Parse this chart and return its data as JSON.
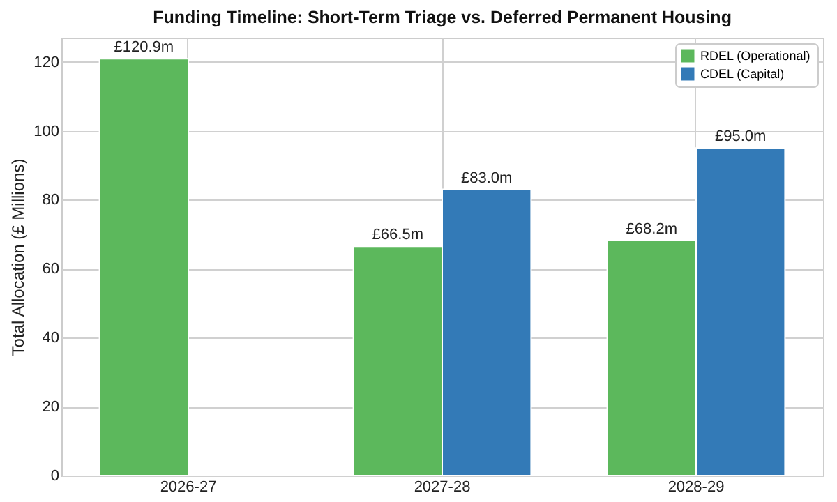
{
  "chart_data": {
    "type": "bar",
    "title": "Funding Timeline: Short-Term Triage vs. Deferred Permanent Housing",
    "ylabel": "Total Allocation (£ Millions)",
    "categories": [
      "2026-27",
      "2027-28",
      "2028-29"
    ],
    "series": [
      {
        "name": "RDEL (Operational)",
        "color": "#5cb85c",
        "values": [
          120.9,
          66.5,
          68.2
        ],
        "value_labels": [
          "£120.9m",
          "£66.5m",
          "£68.2m"
        ]
      },
      {
        "name": "CDEL (Capital)",
        "color": "#337ab7",
        "values": [
          null,
          83.0,
          95.0
        ],
        "value_labels": [
          null,
          "£83.0m",
          "£95.0m"
        ]
      }
    ],
    "ylim": [
      0,
      127
    ],
    "yticks": [
      0,
      20,
      40,
      60,
      80,
      100,
      120
    ],
    "grid": true,
    "legend": "top right"
  }
}
